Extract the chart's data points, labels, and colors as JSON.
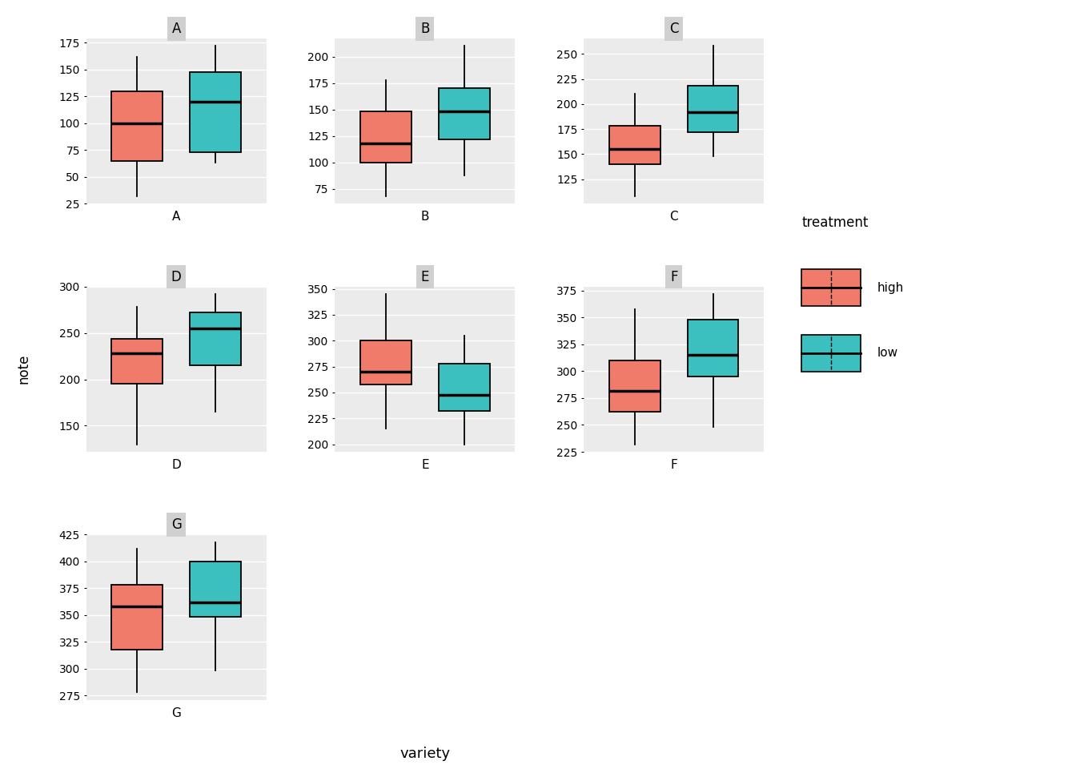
{
  "varieties": [
    "A",
    "B",
    "C",
    "D",
    "E",
    "F",
    "G"
  ],
  "layout": [
    [
      0,
      1,
      2
    ],
    [
      3,
      4,
      5
    ],
    [
      6
    ]
  ],
  "high_color": "#F07B6A",
  "low_color": "#3BBFBF",
  "bg_color": "#EBEBEB",
  "strip_color": "#D0D0D0",
  "grid_color": "#FFFFFF",
  "box_data": {
    "A": {
      "high": {
        "whislo": 32,
        "q1": 65,
        "med": 100,
        "q3": 130,
        "whishi": 162
      },
      "low": {
        "whislo": 63,
        "q1": 73,
        "med": 120,
        "q3": 148,
        "whishi": 172
      }
    },
    "B": {
      "high": {
        "whislo": 68,
        "q1": 100,
        "med": 118,
        "q3": 148,
        "whishi": 178
      },
      "low": {
        "whislo": 88,
        "q1": 122,
        "med": 148,
        "q3": 170,
        "whishi": 210
      }
    },
    "C": {
      "high": {
        "whislo": 108,
        "q1": 140,
        "med": 155,
        "q3": 178,
        "whishi": 210
      },
      "low": {
        "whislo": 148,
        "q1": 172,
        "med": 192,
        "q3": 218,
        "whishi": 258
      }
    },
    "D": {
      "high": {
        "whislo": 130,
        "q1": 195,
        "med": 228,
        "q3": 244,
        "whishi": 278
      },
      "low": {
        "whislo": 165,
        "q1": 215,
        "med": 255,
        "q3": 272,
        "whishi": 292
      }
    },
    "E": {
      "high": {
        "whislo": 215,
        "q1": 258,
        "med": 270,
        "q3": 300,
        "whishi": 345
      },
      "low": {
        "whislo": 200,
        "q1": 232,
        "med": 248,
        "q3": 278,
        "whishi": 305
      }
    },
    "F": {
      "high": {
        "whislo": 232,
        "q1": 262,
        "med": 282,
        "q3": 310,
        "whishi": 358
      },
      "low": {
        "whislo": 248,
        "q1": 295,
        "med": 315,
        "q3": 348,
        "whishi": 372
      }
    },
    "G": {
      "high": {
        "whislo": 278,
        "q1": 318,
        "med": 358,
        "q3": 378,
        "whishi": 412
      },
      "low": {
        "whislo": 298,
        "q1": 348,
        "med": 362,
        "q3": 400,
        "whishi": 418
      }
    }
  },
  "ylabel": "note",
  "xlabel": "variety",
  "legend_title": "treatment",
  "legend_labels": [
    "high",
    "low"
  ],
  "fontsize": 11,
  "strip_fontsize": 12
}
